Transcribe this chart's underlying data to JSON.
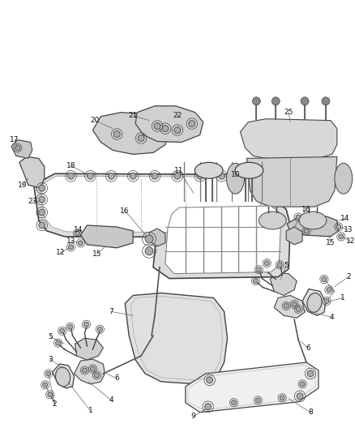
{
  "bg_color": "#ffffff",
  "fig_width": 4.38,
  "fig_height": 5.33,
  "dpi": 100,
  "line_color": "#444444",
  "gray_fill": "#d8d8d8",
  "light_gray": "#eeeeee"
}
